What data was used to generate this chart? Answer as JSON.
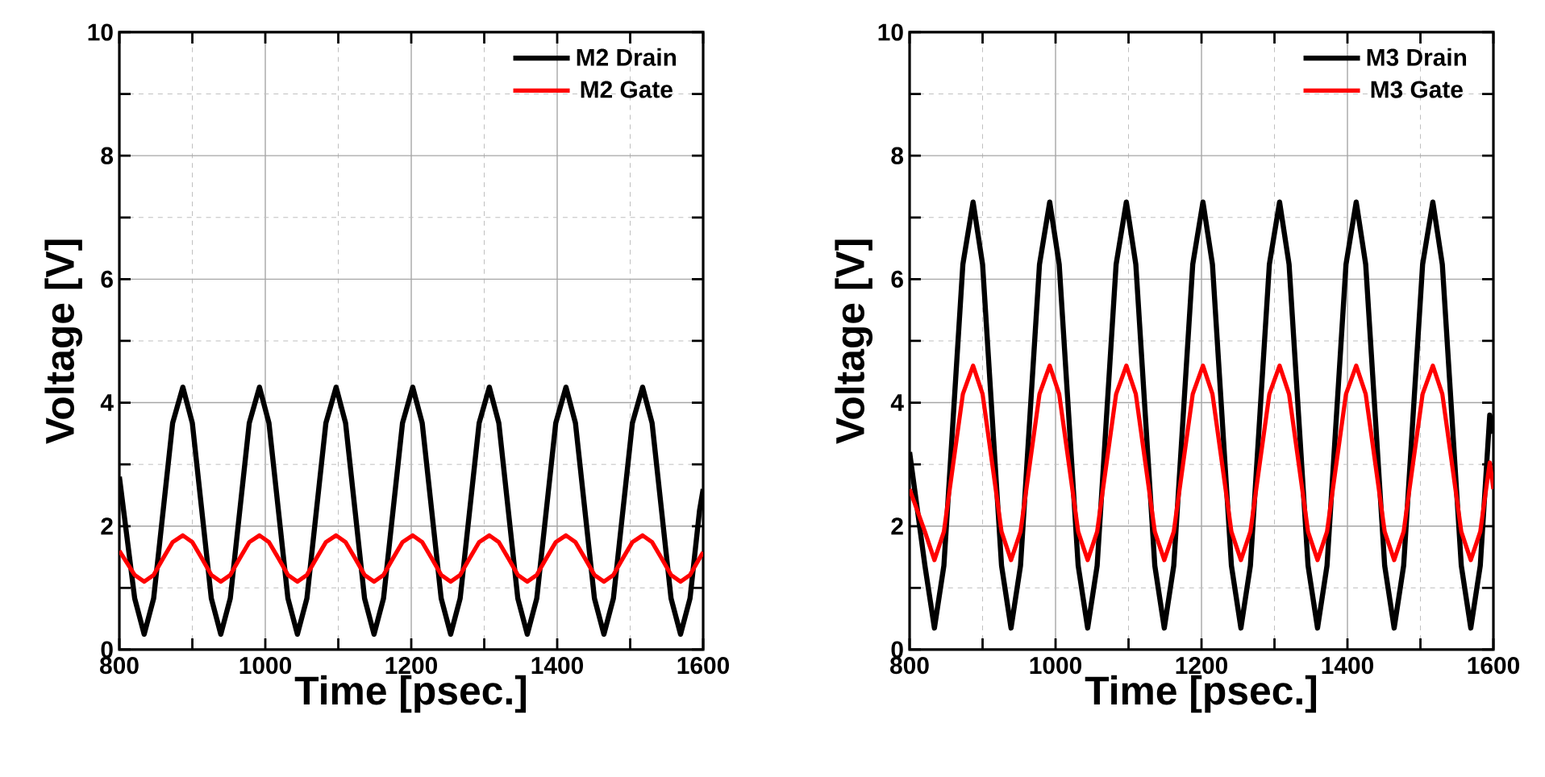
{
  "chart_data": [
    {
      "type": "line",
      "xlabel": "Time [psec.]",
      "ylabel": "Voltage [V]",
      "xlim": [
        800,
        1600
      ],
      "ylim": [
        0,
        10
      ],
      "xticks": [
        800,
        {
          "value": 900,
          "label": null
        },
        1000,
        {
          "value": 1100,
          "label": null
        },
        1200,
        {
          "value": 1300,
          "label": null
        },
        1400,
        {
          "value": 1500,
          "label": null
        },
        1600
      ],
      "yticks": [
        0,
        {
          "value": 1,
          "label": null
        },
        2,
        {
          "value": 3,
          "label": null
        },
        4,
        {
          "value": 5,
          "label": null
        },
        6,
        {
          "value": 7,
          "label": null
        },
        8,
        {
          "value": 9,
          "label": null
        },
        10
      ],
      "grid": true,
      "legend": "top right",
      "x": [
        800,
        821,
        834,
        847,
        860,
        873,
        887,
        900,
        913,
        926,
        939,
        952,
        965,
        978,
        992,
        1005,
        1018,
        1031,
        1044,
        1057,
        1070,
        1083,
        1097,
        1110,
        1123,
        1136,
        1149,
        1162,
        1175,
        1188,
        1202,
        1215,
        1228,
        1241,
        1254,
        1267,
        1280,
        1293,
        1307,
        1320,
        1333,
        1346,
        1359,
        1372,
        1385,
        1398,
        1412,
        1425,
        1438,
        1451,
        1464,
        1477,
        1490,
        1503,
        1517,
        1530,
        1543,
        1556,
        1569,
        1582,
        1595,
        1600
      ],
      "series": [
        {
          "name": "M2 Drain",
          "color": "#000000",
          "values": [
            2.8,
            0.83,
            0.25,
            0.83,
            2.25,
            3.67,
            4.25,
            3.67,
            2.25,
            0.83,
            0.25,
            0.83,
            2.25,
            3.67,
            4.25,
            3.67,
            2.25,
            0.83,
            0.25,
            0.83,
            2.25,
            3.67,
            4.25,
            3.67,
            2.25,
            0.83,
            0.25,
            0.83,
            2.25,
            3.67,
            4.25,
            3.67,
            2.25,
            0.83,
            0.25,
            0.83,
            2.25,
            3.67,
            4.25,
            3.67,
            2.25,
            0.83,
            0.25,
            0.83,
            2.25,
            3.67,
            4.25,
            3.67,
            2.25,
            0.83,
            0.25,
            0.83,
            2.25,
            3.67,
            4.25,
            3.67,
            2.25,
            0.83,
            0.25,
            0.83,
            2.25,
            2.6
          ]
        },
        {
          "name": "M2 Gate",
          "color": "#ff0000",
          "values": [
            1.6,
            1.21,
            1.1,
            1.21,
            1.48,
            1.74,
            1.85,
            1.74,
            1.48,
            1.21,
            1.1,
            1.21,
            1.48,
            1.74,
            1.85,
            1.74,
            1.48,
            1.21,
            1.1,
            1.21,
            1.48,
            1.74,
            1.85,
            1.74,
            1.48,
            1.21,
            1.1,
            1.21,
            1.48,
            1.74,
            1.85,
            1.74,
            1.48,
            1.21,
            1.1,
            1.21,
            1.48,
            1.74,
            1.85,
            1.74,
            1.48,
            1.21,
            1.1,
            1.21,
            1.48,
            1.74,
            1.85,
            1.74,
            1.48,
            1.21,
            1.1,
            1.21,
            1.48,
            1.74,
            1.85,
            1.74,
            1.48,
            1.21,
            1.1,
            1.21,
            1.48,
            1.58
          ]
        }
      ]
    },
    {
      "type": "line",
      "xlabel": "Time [psec.]",
      "ylabel": "Voltage [V]",
      "xlim": [
        800,
        1600
      ],
      "ylim": [
        0,
        10
      ],
      "xticks": [
        800,
        {
          "value": 900,
          "label": null
        },
        1000,
        {
          "value": 1100,
          "label": null
        },
        1200,
        {
          "value": 1300,
          "label": null
        },
        1400,
        {
          "value": 1500,
          "label": null
        },
        1600
      ],
      "yticks": [
        0,
        {
          "value": 1,
          "label": null
        },
        2,
        {
          "value": 3,
          "label": null
        },
        4,
        {
          "value": 5,
          "label": null
        },
        6,
        {
          "value": 7,
          "label": null
        },
        8,
        {
          "value": 9,
          "label": null
        },
        10
      ],
      "grid": true,
      "legend": "top right",
      "x": [
        800,
        821,
        834,
        847,
        860,
        873,
        887,
        900,
        913,
        926,
        939,
        952,
        965,
        978,
        992,
        1005,
        1018,
        1031,
        1044,
        1057,
        1070,
        1083,
        1097,
        1110,
        1123,
        1136,
        1149,
        1162,
        1175,
        1188,
        1202,
        1215,
        1228,
        1241,
        1254,
        1267,
        1280,
        1293,
        1307,
        1320,
        1333,
        1346,
        1359,
        1372,
        1385,
        1398,
        1412,
        1425,
        1438,
        1451,
        1464,
        1477,
        1490,
        1503,
        1517,
        1530,
        1543,
        1556,
        1569,
        1582,
        1595,
        1600
      ],
      "series": [
        {
          "name": "M3 Drain",
          "color": "#000000",
          "values": [
            3.2,
            1.36,
            0.35,
            1.36,
            3.8,
            6.24,
            7.25,
            6.24,
            3.8,
            1.36,
            0.35,
            1.36,
            3.8,
            6.24,
            7.25,
            6.24,
            3.8,
            1.36,
            0.35,
            1.36,
            3.8,
            6.24,
            7.25,
            6.24,
            3.8,
            1.36,
            0.35,
            1.36,
            3.8,
            6.24,
            7.25,
            6.24,
            3.8,
            1.36,
            0.35,
            1.36,
            3.8,
            6.24,
            7.25,
            6.24,
            3.8,
            1.36,
            0.35,
            1.36,
            3.8,
            6.24,
            7.25,
            6.24,
            3.8,
            1.36,
            0.35,
            1.36,
            3.8,
            6.24,
            7.25,
            6.24,
            3.8,
            1.36,
            0.35,
            1.36,
            3.8,
            3.5
          ]
        },
        {
          "name": "M3 Gate",
          "color": "#ff0000",
          "values": [
            2.6,
            1.91,
            1.45,
            1.91,
            3.03,
            4.14,
            4.6,
            4.14,
            3.03,
            1.91,
            1.45,
            1.91,
            3.03,
            4.14,
            4.6,
            4.14,
            3.03,
            1.91,
            1.45,
            1.91,
            3.03,
            4.14,
            4.6,
            4.14,
            3.03,
            1.91,
            1.45,
            1.91,
            3.03,
            4.14,
            4.6,
            4.14,
            3.03,
            1.91,
            1.45,
            1.91,
            3.03,
            4.14,
            4.6,
            4.14,
            3.03,
            1.91,
            1.45,
            1.91,
            3.03,
            4.14,
            4.6,
            4.14,
            3.03,
            1.91,
            1.45,
            1.91,
            3.03,
            4.14,
            4.6,
            4.14,
            3.03,
            1.91,
            1.45,
            1.91,
            3.03,
            2.6
          ]
        }
      ]
    }
  ]
}
